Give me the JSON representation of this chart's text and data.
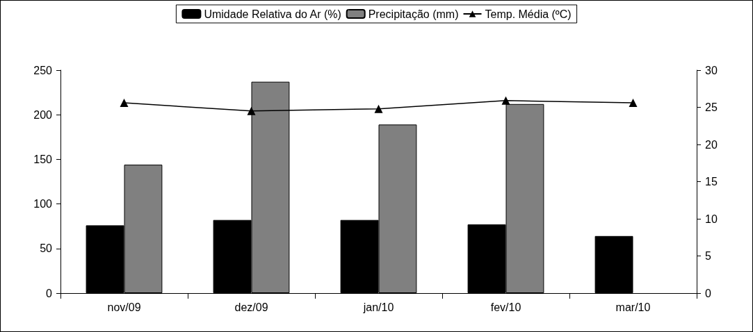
{
  "chart_data": {
    "type": "bar",
    "categories": [
      "nov/09",
      "dez/09",
      "jan/10",
      "fev/10",
      "mar/10"
    ],
    "series": [
      {
        "name": "Umidade Relativa do Ar (%)",
        "color": "#000000",
        "values": [
          76,
          82,
          82,
          77,
          64
        ]
      },
      {
        "name": "Precipitação (mm)",
        "color": "#808080",
        "values": [
          144,
          237,
          189,
          212,
          null
        ]
      },
      {
        "name": "Temp. Média (ºC)",
        "type": "line",
        "axis": "y2",
        "color": "#000000",
        "marker": "triangle",
        "values": [
          25.6,
          24.5,
          24.8,
          25.9,
          25.6
        ]
      }
    ],
    "ylim": [
      0,
      250
    ],
    "yticks": [
      0,
      50,
      100,
      150,
      200,
      250
    ],
    "y2lim": [
      0,
      30
    ],
    "y2ticks": [
      0,
      5,
      10,
      15,
      20,
      25,
      30
    ],
    "grid": false,
    "legend": "top"
  }
}
